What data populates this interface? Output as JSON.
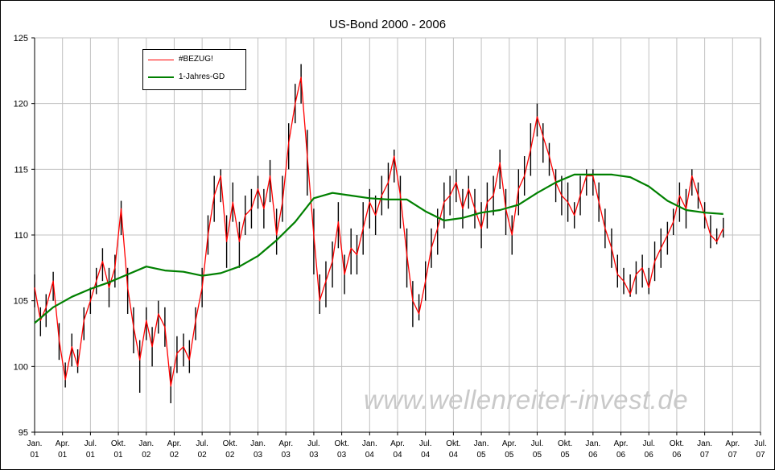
{
  "chart_data": {
    "type": "line",
    "title": "US-Bond 2000 - 2006",
    "ylim": [
      95,
      125
    ],
    "yticks": [
      95,
      100,
      105,
      110,
      115,
      120,
      125
    ],
    "xlim": [
      "2001-01",
      "2007-07"
    ],
    "xtick_labels": [
      [
        "Jan.",
        "01"
      ],
      [
        "Apr.",
        "01"
      ],
      [
        "Jul.",
        "01"
      ],
      [
        "Okt.",
        "01"
      ],
      [
        "Jan.",
        "02"
      ],
      [
        "Apr.",
        "02"
      ],
      [
        "Jul.",
        "02"
      ],
      [
        "Okt.",
        "02"
      ],
      [
        "Jan.",
        "03"
      ],
      [
        "Apr.",
        "03"
      ],
      [
        "Jul.",
        "03"
      ],
      [
        "Okt.",
        "03"
      ],
      [
        "Jan.",
        "04"
      ],
      [
        "Apr.",
        "04"
      ],
      [
        "Jul.",
        "04"
      ],
      [
        "Okt.",
        "04"
      ],
      [
        "Jan.",
        "05"
      ],
      [
        "Apr.",
        "05"
      ],
      [
        "Jul.",
        "05"
      ],
      [
        "Okt.",
        "05"
      ],
      [
        "Jan.",
        "06"
      ],
      [
        "Apr.",
        "06"
      ],
      [
        "Jul.",
        "06"
      ],
      [
        "Okt.",
        "06"
      ],
      [
        "Jan.",
        "07"
      ],
      [
        "Apr.",
        "07"
      ],
      [
        "Jul.",
        "07"
      ]
    ],
    "grid": true,
    "legend_position": "top-left",
    "series": [
      {
        "name": "#BEZUG!",
        "color": "#ff0000",
        "style": "high-low bars in black with red close line",
        "x": [
          "2001-01-01",
          "2001-01-20",
          "2001-02-08",
          "2001-03-01",
          "2001-03-20",
          "2001-04-10",
          "2001-05-01",
          "2001-05-20",
          "2001-06-10",
          "2001-07-01",
          "2001-07-20",
          "2001-08-10",
          "2001-09-01",
          "2001-09-20",
          "2001-10-10",
          "2001-11-01",
          "2001-11-20",
          "2001-12-10",
          "2002-01-01",
          "2002-01-20",
          "2002-02-10",
          "2002-03-01",
          "2002-03-20",
          "2002-04-10",
          "2002-05-01",
          "2002-05-20",
          "2002-06-10",
          "2002-07-01",
          "2002-07-20",
          "2002-08-10",
          "2002-09-01",
          "2002-09-20",
          "2002-10-10",
          "2002-11-01",
          "2002-11-20",
          "2002-12-10",
          "2003-01-01",
          "2003-01-20",
          "2003-02-10",
          "2003-03-01",
          "2003-03-20",
          "2003-04-10",
          "2003-05-01",
          "2003-05-20",
          "2003-06-10",
          "2003-07-01",
          "2003-07-20",
          "2003-08-10",
          "2003-09-01",
          "2003-09-20",
          "2003-10-10",
          "2003-11-01",
          "2003-11-20",
          "2003-12-10",
          "2004-01-01",
          "2004-01-20",
          "2004-02-10",
          "2004-03-01",
          "2004-03-20",
          "2004-04-10",
          "2004-05-01",
          "2004-05-20",
          "2004-06-10",
          "2004-07-01",
          "2004-07-20",
          "2004-08-10",
          "2004-09-01",
          "2004-09-20",
          "2004-10-10",
          "2004-11-01",
          "2004-11-20",
          "2004-12-10",
          "2005-01-01",
          "2005-01-20",
          "2005-02-10",
          "2005-03-01",
          "2005-03-20",
          "2005-04-10",
          "2005-05-01",
          "2005-05-20",
          "2005-06-10",
          "2005-07-01",
          "2005-07-20",
          "2005-08-10",
          "2005-09-01",
          "2005-09-20",
          "2005-10-10",
          "2005-11-01",
          "2005-11-20",
          "2005-12-10",
          "2006-01-01",
          "2006-01-20",
          "2006-02-10",
          "2006-03-01",
          "2006-03-20",
          "2006-04-10",
          "2006-05-01",
          "2006-05-20",
          "2006-06-10",
          "2006-07-01",
          "2006-07-20",
          "2006-08-10",
          "2006-09-01",
          "2006-09-20",
          "2006-10-10",
          "2006-11-01",
          "2006-11-20",
          "2006-12-10",
          "2007-01-01",
          "2007-01-20",
          "2007-02-10",
          "2007-03-01"
        ],
        "values": [
          106.0,
          103.5,
          104.5,
          106.5,
          102.0,
          99.0,
          101.5,
          100.0,
          103.5,
          105.0,
          106.5,
          108.0,
          106.0,
          107.5,
          112.0,
          106.0,
          103.0,
          100.5,
          103.5,
          101.5,
          104.0,
          103.0,
          98.5,
          101.0,
          101.5,
          100.5,
          103.5,
          106.0,
          110.0,
          113.0,
          114.5,
          109.5,
          112.5,
          109.5,
          111.5,
          112.0,
          113.5,
          112.0,
          114.5,
          110.0,
          112.5,
          117.0,
          120.0,
          122.0,
          116.0,
          110.0,
          105.0,
          106.5,
          108.0,
          111.0,
          107.0,
          109.0,
          108.5,
          110.5,
          112.5,
          111.5,
          113.0,
          114.0,
          116.0,
          113.0,
          108.5,
          105.0,
          104.0,
          106.5,
          109.0,
          110.5,
          112.5,
          113.0,
          114.0,
          112.0,
          113.5,
          112.0,
          110.5,
          112.5,
          113.0,
          115.5,
          112.0,
          110.0,
          113.5,
          114.5,
          116.5,
          119.0,
          117.5,
          116.0,
          114.0,
          113.0,
          112.5,
          111.5,
          113.0,
          114.5,
          114.5,
          112.5,
          110.5,
          109.0,
          107.0,
          106.5,
          105.5,
          107.0,
          107.5,
          106.0,
          108.0,
          109.0,
          110.0,
          111.0,
          113.0,
          112.0,
          114.5,
          113.0,
          111.5,
          110.0,
          109.5,
          110.5
        ],
        "high": [
          107.0,
          104.5,
          105.5,
          107.2,
          103.3,
          100.3,
          102.5,
          101.3,
          104.5,
          106.0,
          107.5,
          109.0,
          107.5,
          108.5,
          112.6,
          107.5,
          104.5,
          102.0,
          104.5,
          103.0,
          105.0,
          104.5,
          100.0,
          102.3,
          102.5,
          102.0,
          104.5,
          107.5,
          111.5,
          114.5,
          115.0,
          111.5,
          114.0,
          111.0,
          113.0,
          113.5,
          114.5,
          113.5,
          115.7,
          112.0,
          114.5,
          118.5,
          121.5,
          123.0,
          118.0,
          112.0,
          107.0,
          108.0,
          109.5,
          112.5,
          108.5,
          110.5,
          110.0,
          112.5,
          113.5,
          113.0,
          114.5,
          115.5,
          116.5,
          114.5,
          110.5,
          106.5,
          105.5,
          108.0,
          110.5,
          112.0,
          114.0,
          114.5,
          115.0,
          113.5,
          114.5,
          113.5,
          112.5,
          114.0,
          114.5,
          116.5,
          113.5,
          111.5,
          115.0,
          116.0,
          118.5,
          120.0,
          118.5,
          117.0,
          115.0,
          114.5,
          114.0,
          112.5,
          114.5,
          115.0,
          115.0,
          114.0,
          112.0,
          110.5,
          108.5,
          107.5,
          107.0,
          108.0,
          108.5,
          107.5,
          109.5,
          110.5,
          111.0,
          112.0,
          114.0,
          113.5,
          115.0,
          114.0,
          112.5,
          111.5,
          110.5,
          111.3
        ],
        "low": [
          104.5,
          102.3,
          103.0,
          105.0,
          100.5,
          98.4,
          100.0,
          99.5,
          102.0,
          104.0,
          105.5,
          106.5,
          104.5,
          106.0,
          110.0,
          104.0,
          101.0,
          98.0,
          102.0,
          100.0,
          102.5,
          101.5,
          97.2,
          99.5,
          100.0,
          99.5,
          102.0,
          104.5,
          108.5,
          111.0,
          112.5,
          107.5,
          111.0,
          107.5,
          110.0,
          110.5,
          112.0,
          110.5,
          112.5,
          108.5,
          111.0,
          115.0,
          118.5,
          120.0,
          113.0,
          107.0,
          104.0,
          104.5,
          106.0,
          109.0,
          105.5,
          107.0,
          107.0,
          108.5,
          110.5,
          110.0,
          111.5,
          112.0,
          114.0,
          110.5,
          106.0,
          103.0,
          103.5,
          105.0,
          107.5,
          108.5,
          110.5,
          111.5,
          112.5,
          110.5,
          112.0,
          110.5,
          109.0,
          110.5,
          111.5,
          113.5,
          110.0,
          108.5,
          111.5,
          113.0,
          114.5,
          117.5,
          115.5,
          114.5,
          112.5,
          111.5,
          111.0,
          110.5,
          111.5,
          113.0,
          113.0,
          111.0,
          109.0,
          107.5,
          106.0,
          105.5,
          105.3,
          105.5,
          106.0,
          105.5,
          106.5,
          107.5,
          108.5,
          110.0,
          111.0,
          110.5,
          113.0,
          112.0,
          110.5,
          109.0,
          109.3,
          109.8
        ]
      },
      {
        "name": "1-Jahres-GD",
        "color": "#008000",
        "x": [
          "2001-01-01",
          "2001-03-01",
          "2001-05-01",
          "2001-07-01",
          "2001-09-01",
          "2001-11-01",
          "2002-01-01",
          "2002-03-01",
          "2002-05-01",
          "2002-07-01",
          "2002-09-01",
          "2002-11-01",
          "2003-01-01",
          "2003-03-01",
          "2003-05-01",
          "2003-07-01",
          "2003-09-01",
          "2003-11-01",
          "2004-01-01",
          "2004-03-01",
          "2004-05-01",
          "2004-07-01",
          "2004-09-01",
          "2004-11-01",
          "2005-01-01",
          "2005-03-01",
          "2005-05-01",
          "2005-07-01",
          "2005-09-01",
          "2005-11-01",
          "2006-01-01",
          "2006-03-01",
          "2006-05-01",
          "2006-07-01",
          "2006-09-01",
          "2006-11-01",
          "2007-01-01",
          "2007-03-01"
        ],
        "values": [
          103.3,
          104.5,
          105.3,
          105.9,
          106.4,
          107.0,
          107.6,
          107.3,
          107.2,
          106.9,
          107.1,
          107.6,
          108.4,
          109.6,
          111.0,
          112.8,
          113.2,
          113.0,
          112.8,
          112.7,
          112.7,
          111.8,
          111.1,
          111.3,
          111.7,
          111.9,
          112.3,
          113.2,
          114.0,
          114.6,
          114.6,
          114.6,
          114.4,
          113.7,
          112.6,
          111.9,
          111.7,
          111.6
        ]
      }
    ]
  },
  "watermark": "www.wellenreiter-invest.de"
}
